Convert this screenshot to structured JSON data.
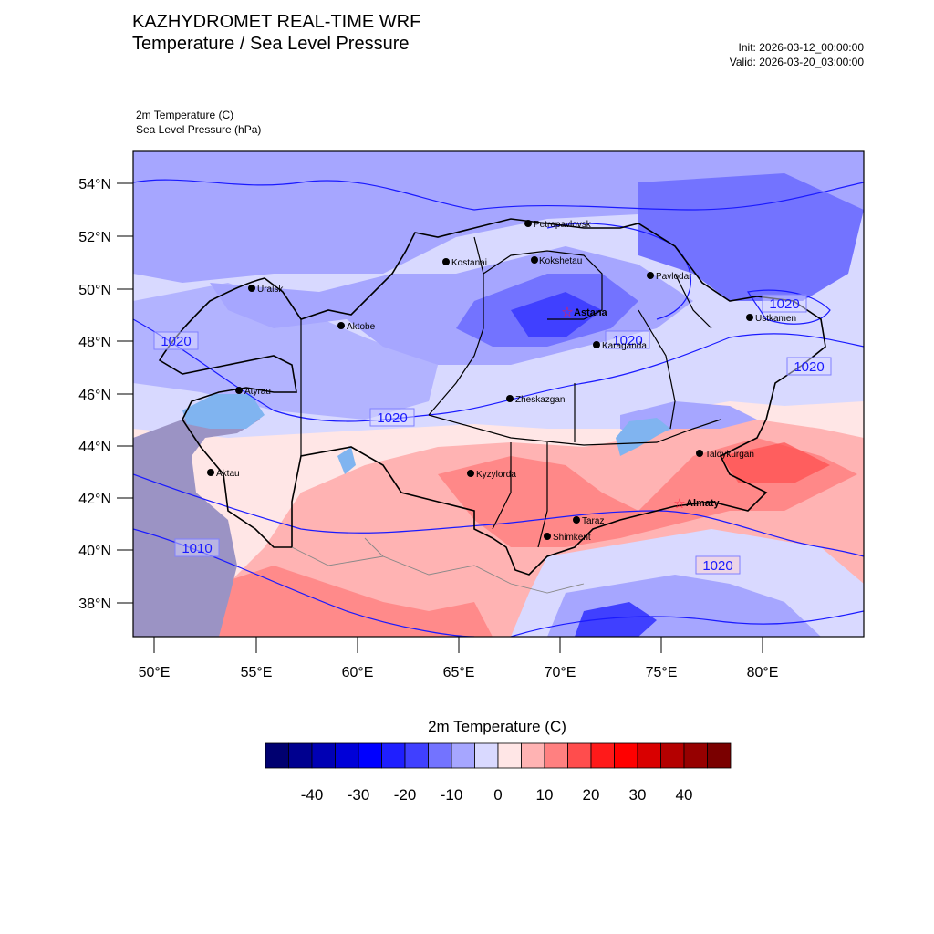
{
  "header": {
    "title_line1": "KAZHYDROMET REAL-TIME WRF",
    "title_line2": "Temperature / Sea Level Pressure",
    "init": "Init: 2026-03-12_00:00:00",
    "valid": "Valid: 2026-03-20_03:00:00",
    "var1": "2m Temperature   (C)",
    "var2": "Sea Level Pressure   (hPa)"
  },
  "map": {
    "lat_labels": [
      "54°N",
      "52°N",
      "50°N",
      "48°N",
      "46°N",
      "44°N",
      "42°N",
      "40°N",
      "38°N"
    ],
    "lon_labels": [
      "50°E",
      "55°E",
      "60°E",
      "65°E",
      "70°E",
      "75°E",
      "80°E"
    ],
    "cities": [
      {
        "name": "Petropavlovsk",
        "capital": false
      },
      {
        "name": "Kostanai",
        "capital": false
      },
      {
        "name": "Kokshetau",
        "capital": false
      },
      {
        "name": "Pavlodar",
        "capital": false
      },
      {
        "name": "Uralsk",
        "capital": false
      },
      {
        "name": "Astana",
        "capital": true
      },
      {
        "name": "Aktobe",
        "capital": false
      },
      {
        "name": "Ustkamen",
        "capital": false
      },
      {
        "name": "Karaganda",
        "capital": false
      },
      {
        "name": "Atyrau",
        "capital": false
      },
      {
        "name": "Zheskazgan",
        "capital": false
      },
      {
        "name": "Taldykurgan",
        "capital": false
      },
      {
        "name": "Aktau",
        "capital": false
      },
      {
        "name": "Kyzylorda",
        "capital": false
      },
      {
        "name": "Almaty",
        "capital": true
      },
      {
        "name": "Taraz",
        "capital": false
      },
      {
        "name": "Shimkent",
        "capital": false
      }
    ],
    "isobar_labels": [
      "1020",
      "1020",
      "1020",
      "1020",
      "1020",
      "1010",
      "1020"
    ]
  },
  "colorbar": {
    "title": "2m Temperature  (C)",
    "ticks": [
      "-40",
      "-30",
      "-20",
      "-10",
      "0",
      "10",
      "20",
      "30",
      "40"
    ],
    "colors": [
      "#000070",
      "#00008f",
      "#0000b4",
      "#0000d8",
      "#0000ff",
      "#1f1fff",
      "#4040ff",
      "#7373ff",
      "#a6a6ff",
      "#d9d9ff",
      "#ffe6e6",
      "#ffb3b3",
      "#ff8080",
      "#ff4d4d",
      "#ff1a1a",
      "#ff0000",
      "#d90000",
      "#b40000",
      "#960000",
      "#7a0000"
    ]
  }
}
